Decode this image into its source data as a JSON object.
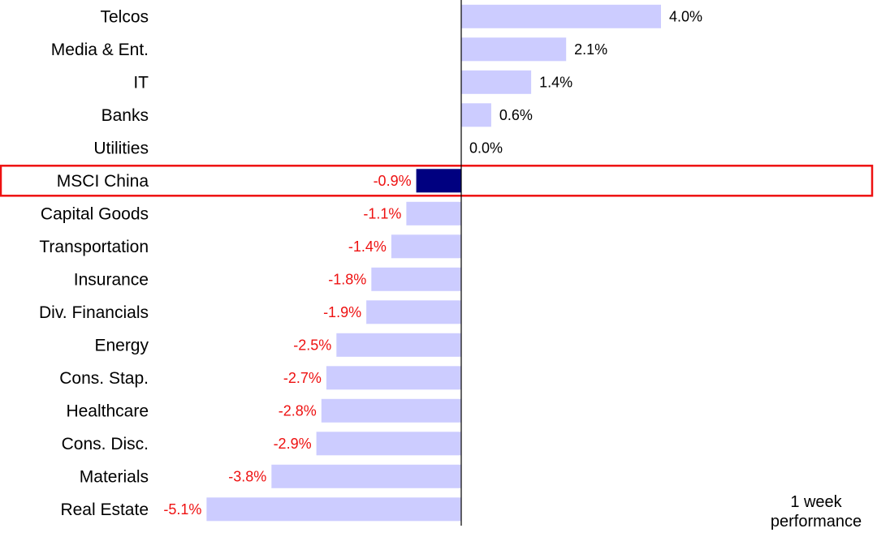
{
  "chart_data": {
    "type": "bar",
    "orientation": "horizontal",
    "categories": [
      "Telcos",
      "Media & Ent.",
      "IT",
      "Banks",
      "Utilities",
      "MSCI China",
      "Capital Goods",
      "Transportation",
      "Insurance",
      "Div. Financials",
      "Energy",
      "Cons. Stap.",
      "Healthcare",
      "Cons. Disc.",
      "Materials",
      "Real Estate"
    ],
    "values": [
      4.0,
      2.1,
      1.4,
      0.6,
      0.0,
      -0.9,
      -1.1,
      -1.4,
      -1.8,
      -1.9,
      -2.5,
      -2.7,
      -2.8,
      -2.9,
      -3.8,
      -5.1
    ],
    "value_labels": [
      "4.0%",
      "2.1%",
      "1.4%",
      "0.6%",
      "0.0%",
      "-0.9%",
      "-1.1%",
      "-1.4%",
      "-1.8%",
      "-1.9%",
      "-2.5%",
      "-2.7%",
      "-2.8%",
      "-2.9%",
      "-3.8%",
      "-5.1%"
    ],
    "highlight_category": "MSCI China",
    "xlim": [
      -5.1,
      4.0
    ],
    "legend_note": "1 week\nperformance",
    "colors": {
      "bar": "#ccccff",
      "highlight_bar": "#000080",
      "highlight_box": "#ee1111",
      "positive_label": "#000000",
      "negative_label": "#ee1111",
      "axis": "#000000"
    }
  }
}
